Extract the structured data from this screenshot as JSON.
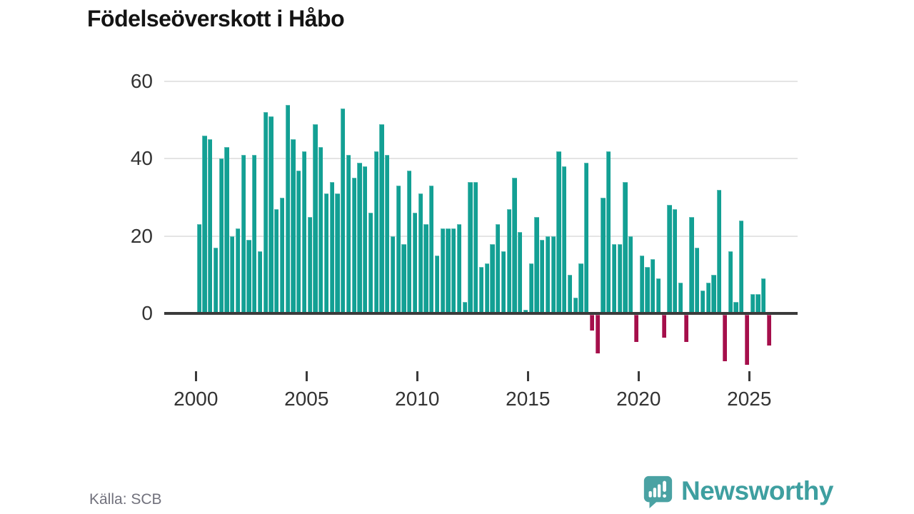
{
  "title": "Födelseöverskott i Håbo",
  "source": "Källa: SCB",
  "logo": {
    "text": "Newsworthy"
  },
  "colors": {
    "positive": "#13a094",
    "negative": "#a50f4b",
    "axis": "#3b3b3b",
    "grid": "#e4e4e4",
    "text": "#333333",
    "muted_text": "#71717c",
    "logo_teal": "#3e9fa0"
  },
  "y_axis": {
    "ticks": [
      60,
      40,
      20,
      0
    ]
  },
  "x_axis": {
    "ticks": [
      2000,
      2005,
      2010,
      2015,
      2020,
      2025
    ]
  },
  "chart_data": {
    "type": "bar",
    "title": "Födelseöverskott i Håbo",
    "period": "2000 Q1 – 2025 Q4",
    "frequency": "quarterly",
    "start_year": 2000,
    "xlabel": "",
    "ylabel": "",
    "ylim": [
      -15,
      62
    ],
    "grid": "horizontal",
    "values": [
      23,
      46,
      45,
      17,
      40,
      43,
      20,
      22,
      41,
      19,
      41,
      16,
      52,
      51,
      27,
      30,
      54,
      45,
      37,
      42,
      25,
      49,
      43,
      31,
      34,
      31,
      53,
      41,
      35,
      39,
      38,
      26,
      42,
      49,
      41,
      20,
      33,
      18,
      37,
      26,
      31,
      23,
      33,
      15,
      22,
      22,
      22,
      23,
      3,
      34,
      34,
      12,
      13,
      18,
      23,
      16,
      27,
      35,
      21,
      1,
      13,
      25,
      19,
      20,
      20,
      42,
      38,
      10,
      4,
      13,
      39,
      -4,
      -10,
      30,
      42,
      18,
      18,
      34,
      20,
      -7,
      15,
      12,
      14,
      9,
      -6,
      28,
      27,
      8,
      -7,
      25,
      17,
      6,
      8,
      10,
      32,
      -12,
      16,
      3,
      24,
      -13,
      5,
      5,
      9,
      -8
    ]
  }
}
